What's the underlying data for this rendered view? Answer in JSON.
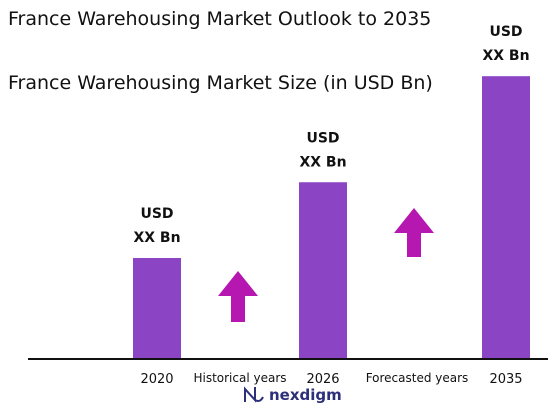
{
  "titles": {
    "line1": "France Warehousing Market Outlook to 2035",
    "line2": "France Warehousing Market Size (in USD Bn)"
  },
  "colors": {
    "bar": "#8a44c4",
    "arrow": "#b517b0",
    "baseline": "#111111",
    "logo": "#2c2f7a"
  },
  "chart_data": {
    "type": "bar",
    "categories": [
      "2020",
      "2026",
      "2035"
    ],
    "values": [
      1.0,
      1.75,
      2.8
    ],
    "value_labels": [
      [
        "USD",
        "XX Bn"
      ],
      [
        "USD",
        "XX Bn"
      ],
      [
        "USD",
        "XX Bn"
      ]
    ],
    "ylim": [
      0,
      3
    ],
    "periods": [
      "Historical years",
      "Forecasted years"
    ],
    "grid": false,
    "legend": "none"
  },
  "logo": {
    "text": "nexdigm",
    "icon": "nexdigm-logo-icon"
  }
}
